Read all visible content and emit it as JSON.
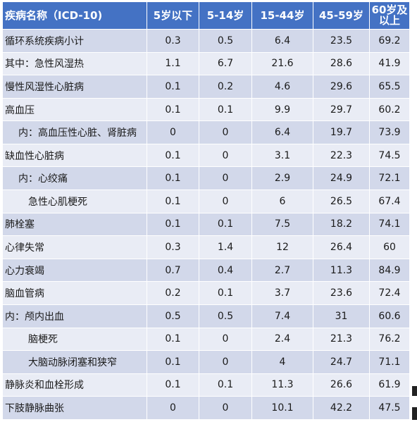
{
  "table": {
    "headers": [
      "疾病名称（ICD-10)",
      "5岁以下",
      "5-14岁",
      "15-44岁",
      "45-59岁",
      "60岁及以上"
    ],
    "rows": [
      {
        "name": "循环系统疾病小计",
        "indent": 0,
        "values": [
          "0.3",
          "0.5",
          "6.4",
          "23.5",
          "69.2"
        ]
      },
      {
        "name": "其中：急性风湿热",
        "indent": 0,
        "values": [
          "1.1",
          "6.7",
          "21.6",
          "28.6",
          "41.9"
        ]
      },
      {
        "name": "慢性风湿性心脏病",
        "indent": 0,
        "values": [
          "0.1",
          "0.2",
          "4.6",
          "29.6",
          "65.5"
        ]
      },
      {
        "name": "高血压",
        "indent": 0,
        "values": [
          "0.1",
          "0.1",
          "9.9",
          "29.7",
          "60.2"
        ]
      },
      {
        "name": "内：高血压性心脏、肾脏病",
        "indent": 1,
        "values": [
          "0",
          "0",
          "6.4",
          "19.7",
          "73.9"
        ]
      },
      {
        "name": "缺血性心脏病",
        "indent": 0,
        "values": [
          "0.1",
          "0",
          "3.1",
          "22.3",
          "74.5"
        ]
      },
      {
        "name": "内：心绞痛",
        "indent": 1,
        "values": [
          "0.1",
          "0",
          "2.9",
          "24.9",
          "72.1"
        ]
      },
      {
        "name": "急性心肌梗死",
        "indent": 2,
        "values": [
          "0.1",
          "0",
          "6",
          "26.5",
          "67.4"
        ]
      },
      {
        "name": "肺栓塞",
        "indent": 0,
        "values": [
          "0.1",
          "0.1",
          "7.5",
          "18.2",
          "74.1"
        ]
      },
      {
        "name": "心律失常",
        "indent": 0,
        "values": [
          "0.3",
          "1.4",
          "12",
          "26.4",
          "60"
        ]
      },
      {
        "name": "心力衰竭",
        "indent": 0,
        "values": [
          "0.7",
          "0.4",
          "2.7",
          "11.3",
          "84.9"
        ]
      },
      {
        "name": "脑血管病",
        "indent": 0,
        "values": [
          "0.2",
          "0.1",
          "3.7",
          "23.6",
          "72.4"
        ]
      },
      {
        "name": "内：颅内出血",
        "indent": 0,
        "values": [
          "0.5",
          "0.5",
          "7.4",
          "31",
          "60.6"
        ]
      },
      {
        "name": "脑梗死",
        "indent": 2,
        "values": [
          "0.1",
          "0",
          "2.4",
          "21.3",
          "76.2"
        ]
      },
      {
        "name": "大脑动脉闭塞和狭窄",
        "indent": 2,
        "values": [
          "0.1",
          "0",
          "4",
          "24.7",
          "71.1"
        ]
      },
      {
        "name": "静脉炎和血栓形成",
        "indent": 0,
        "values": [
          "0.1",
          "0.1",
          "11.3",
          "26.6",
          "61.9"
        ]
      },
      {
        "name": "下肢静脉曲张",
        "indent": 0,
        "values": [
          "0",
          "0",
          "10.1",
          "42.2",
          "47.5"
        ]
      }
    ]
  },
  "colors": {
    "header_bg": "#4472c4",
    "row_band_dark": "#d2d8ea",
    "row_band_light": "#e9ecf5"
  }
}
